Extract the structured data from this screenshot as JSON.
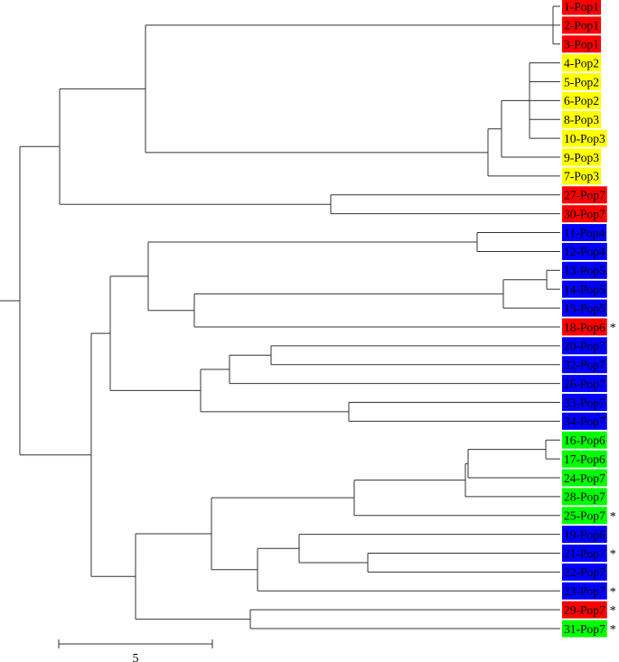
{
  "colors": {
    "red": "#ff0000",
    "yellow": "#ffff00",
    "blue": "#0000ff",
    "green": "#00ff00"
  },
  "leaves": [
    {
      "label": "1-Pop1",
      "color": "red"
    },
    {
      "label": "2-Pop1",
      "color": "red"
    },
    {
      "label": "3-Pop1",
      "color": "red"
    },
    {
      "label": "4-Pop2",
      "color": "yellow"
    },
    {
      "label": "5-Pop2",
      "color": "yellow"
    },
    {
      "label": "6-Pop2",
      "color": "yellow"
    },
    {
      "label": "8-Pop3",
      "color": "yellow"
    },
    {
      "label": "10-Pop3",
      "color": "yellow"
    },
    {
      "label": "9-Pop3",
      "color": "yellow"
    },
    {
      "label": "7-Pop3",
      "color": "yellow"
    },
    {
      "label": "27-Pop7",
      "color": "red"
    },
    {
      "label": "30-Pop7",
      "color": "red"
    },
    {
      "label": "11-Pop4",
      "color": "blue"
    },
    {
      "label": "12-Pop4",
      "color": "blue"
    },
    {
      "label": "13-Pop5",
      "color": "blue"
    },
    {
      "label": "14-Pop5",
      "color": "blue"
    },
    {
      "label": "15-Pop5",
      "color": "blue"
    },
    {
      "label": "18-Pop6",
      "color": "red",
      "mark": "*"
    },
    {
      "label": "20-Pop7",
      "color": "blue"
    },
    {
      "label": "32-Pop7",
      "color": "blue"
    },
    {
      "label": "26-Pop7",
      "color": "blue"
    },
    {
      "label": "33-Pop7",
      "color": "blue"
    },
    {
      "label": "34-Pop7",
      "color": "blue"
    },
    {
      "label": "16-Pop6",
      "color": "green"
    },
    {
      "label": "17-Pop6",
      "color": "green"
    },
    {
      "label": "24-Pop7",
      "color": "green"
    },
    {
      "label": "28-Pop7",
      "color": "green"
    },
    {
      "label": "25-Pop7",
      "color": "green",
      "mark": "*"
    },
    {
      "label": "19-Pop6",
      "color": "blue"
    },
    {
      "label": "21-Pop7",
      "color": "blue",
      "mark": "*"
    },
    {
      "label": "22-Pop7",
      "color": "blue"
    },
    {
      "label": "23-Pop7",
      "color": "blue",
      "mark": "*"
    },
    {
      "label": "29-Pop7",
      "color": "red",
      "mark": "*"
    },
    {
      "label": "31-Pop7",
      "color": "green",
      "mark": "*"
    }
  ],
  "scale_bar": {
    "value": 5,
    "label": "5"
  }
}
